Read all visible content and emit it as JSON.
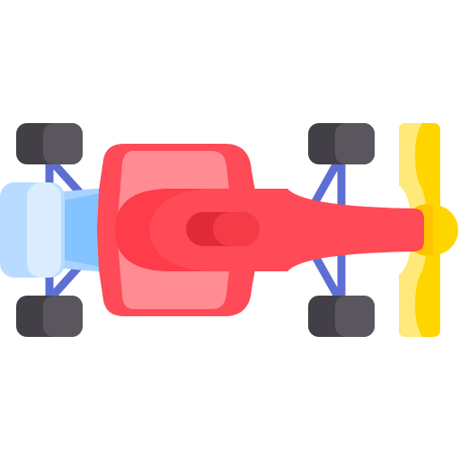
{
  "illustration": {
    "icon": "formula-one-race-car-icon",
    "view": "top-down",
    "colors": {
      "background": "#ffffff",
      "tire_dark": "#424046",
      "tire_light": "#5a565d",
      "suspension": "#5d6fd3",
      "body_red": "#ff4a57",
      "body_red_dark": "#e12a38",
      "sidepod_pink": "#ff8b93",
      "wing_yellow": "#ffd500",
      "wing_yellow_light": "#ffe97a",
      "diffuser_blue_light": "#dbecff",
      "diffuser_blue_mid": "#a9d2ff",
      "diffuser_blue": "#83c3ff"
    }
  }
}
